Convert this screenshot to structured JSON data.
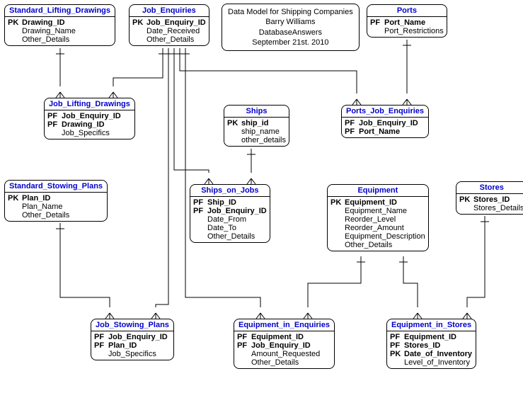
{
  "diagram": {
    "type": "er-diagram",
    "background_color": "#ffffff",
    "line_color": "#000000",
    "title_color": "#0000cc",
    "font_family": "Arial",
    "font_size_pt": 8
  },
  "info": {
    "line1": "Data Model for Shipping Companies",
    "line2": "Barry Williams",
    "line3": "DatabaseAnswers",
    "line4": "September 21st. 2010"
  },
  "entities": {
    "standard_lifting_drawings": {
      "title": "Standard_Lifting_Drawings",
      "rows": [
        {
          "key": "PK",
          "name": "Drawing_ID",
          "pk": true
        },
        {
          "key": "",
          "name": "Drawing_Name"
        },
        {
          "key": "",
          "name": "Other_Details"
        }
      ]
    },
    "job_enquiries": {
      "title": "Job_Enquiries",
      "rows": [
        {
          "key": "PK",
          "name": "Job_Enquiry_ID",
          "pk": true
        },
        {
          "key": "",
          "name": "Date_Received"
        },
        {
          "key": "",
          "name": "Other_Details"
        }
      ]
    },
    "ports": {
      "title": "Ports",
      "rows": [
        {
          "key": "PF",
          "name": "Port_Name",
          "pk": true
        },
        {
          "key": "",
          "name": "Port_Restrictions"
        }
      ]
    },
    "job_lifting_drawings": {
      "title": "Job_Lifting_Drawings",
      "rows": [
        {
          "key": "PF",
          "name": "Job_Enquiry_ID",
          "pk": true
        },
        {
          "key": "PF",
          "name": "Drawing_ID",
          "pk": true
        },
        {
          "key": "",
          "name": "Job_Specifics"
        }
      ]
    },
    "ships": {
      "title": "Ships",
      "rows": [
        {
          "key": "PK",
          "name": "ship_id",
          "pk": true
        },
        {
          "key": "",
          "name": "ship_name"
        },
        {
          "key": "",
          "name": "other_details"
        }
      ]
    },
    "ports_job_enquiries": {
      "title": "Ports_Job_Enquiries",
      "rows": [
        {
          "key": "PF",
          "name": "Job_Enquiry_ID",
          "pk": true
        },
        {
          "key": "PF",
          "name": "Port_Name",
          "pk": true
        }
      ]
    },
    "standard_stowing_plans": {
      "title": "Standard_Stowing_Plans",
      "rows": [
        {
          "key": "PK",
          "name": "Plan_ID",
          "pk": true
        },
        {
          "key": "",
          "name": "Plan_Name"
        },
        {
          "key": "",
          "name": "Other_Details"
        }
      ]
    },
    "ships_on_jobs": {
      "title": "Ships_on_Jobs",
      "rows": [
        {
          "key": "PF",
          "name": "Ship_ID",
          "pk": true
        },
        {
          "key": "PF",
          "name": "Job_Enquiry_ID",
          "pk": true
        },
        {
          "key": "",
          "name": "Date_From"
        },
        {
          "key": "",
          "name": "Date_To"
        },
        {
          "key": "",
          "name": "Other_Details"
        }
      ]
    },
    "equipment": {
      "title": "Equipment",
      "rows": [
        {
          "key": "PK",
          "name": "Equipment_ID",
          "pk": true
        },
        {
          "key": "",
          "name": "Equipment_Name"
        },
        {
          "key": "",
          "name": "Reorder_Level"
        },
        {
          "key": "",
          "name": "Reorder_Amount"
        },
        {
          "key": "",
          "name": "Equipment_Description"
        },
        {
          "key": "",
          "name": "Other_Details"
        }
      ]
    },
    "stores": {
      "title": "Stores",
      "rows": [
        {
          "key": "PK",
          "name": "Stores_ID",
          "pk": true
        },
        {
          "key": "",
          "name": "Stores_Details"
        }
      ]
    },
    "job_stowing_plans": {
      "title": "Job_Stowing_Plans",
      "rows": [
        {
          "key": "PF",
          "name": "Job_Enquiry_ID",
          "pk": true
        },
        {
          "key": "PF",
          "name": "Plan_ID",
          "pk": true
        },
        {
          "key": "",
          "name": "Job_Specifics"
        }
      ]
    },
    "equipment_in_enquiries": {
      "title": "Equipment_in_Enquiries",
      "rows": [
        {
          "key": "PF",
          "name": "Equipment_ID",
          "pk": true
        },
        {
          "key": "PF",
          "name": "Job_Enquiry_ID",
          "pk": true
        },
        {
          "key": "",
          "name": "Amount_Requested"
        },
        {
          "key": "",
          "name": "Other_Details"
        }
      ]
    },
    "equipment_in_stores": {
      "title": "Equipment_in_Stores",
      "rows": [
        {
          "key": "PF",
          "name": "Equipment_ID",
          "pk": true
        },
        {
          "key": "PF",
          "name": "Stores_ID",
          "pk": true
        },
        {
          "key": "PK",
          "name": "Date_of_Inventory",
          "pk": true
        },
        {
          "key": "",
          "name": "Level_of_Inventory"
        }
      ]
    }
  }
}
